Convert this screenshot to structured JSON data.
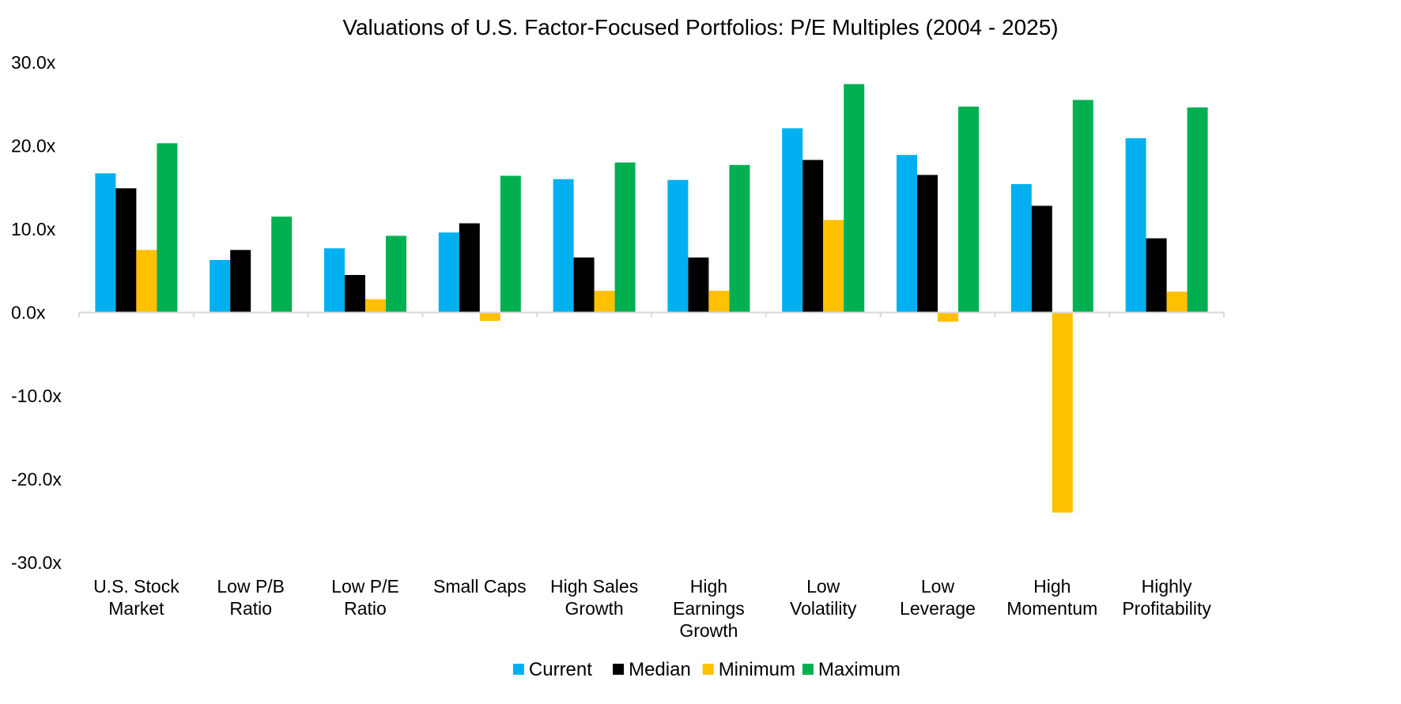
{
  "chart_data": {
    "type": "bar",
    "title": "Valuations of U.S. Factor-Focused Portfolios: P/E Multiples (2004 - 2025)",
    "xlabel": "",
    "ylabel": "",
    "ylim": [
      -30,
      30
    ],
    "yticks": [
      30,
      20,
      10,
      0,
      -10,
      -20,
      -30
    ],
    "ytick_labels": [
      "30.0x",
      "20.0x",
      "10.0x",
      "0.0x",
      "-10.0x",
      "-20.0x",
      "-30.0x"
    ],
    "grid": false,
    "legend_position": "bottom-center",
    "categories": [
      [
        "U.S. Stock",
        "Market"
      ],
      [
        "Low P/B",
        "Ratio"
      ],
      [
        "Low P/E",
        "Ratio"
      ],
      [
        "Small Caps"
      ],
      [
        "High Sales",
        "Growth"
      ],
      [
        "High",
        "Earnings",
        "Growth"
      ],
      [
        "Low",
        "Volatility"
      ],
      [
        "Low",
        "Leverage"
      ],
      [
        "High",
        "Momentum"
      ],
      [
        "Highly",
        "Profitability"
      ]
    ],
    "series": [
      {
        "name": "Current",
        "color": "#00B0F0",
        "values": [
          16.7,
          6.3,
          7.7,
          9.6,
          16.0,
          15.9,
          22.1,
          18.9,
          15.4,
          20.9
        ]
      },
      {
        "name": "Median",
        "color": "#000000",
        "values": [
          14.9,
          7.5,
          4.5,
          10.7,
          6.6,
          6.6,
          18.3,
          16.5,
          12.8,
          8.9
        ]
      },
      {
        "name": "Minimum",
        "color": "#FFC000",
        "values": [
          7.5,
          0.0,
          1.6,
          -1.0,
          2.6,
          2.6,
          11.1,
          -1.1,
          -24.0,
          2.5
        ]
      },
      {
        "name": "Maximum",
        "color": "#00B050",
        "values": [
          20.3,
          11.5,
          9.2,
          16.4,
          18.0,
          17.7,
          27.4,
          24.7,
          25.5,
          24.6
        ]
      }
    ]
  }
}
